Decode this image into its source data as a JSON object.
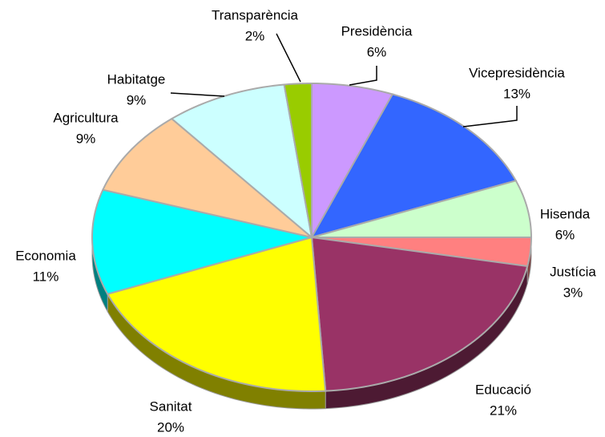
{
  "chart_data": {
    "type": "pie",
    "categories": [
      "Presidència",
      "Vicepresidència",
      "Hisenda",
      "Justícia",
      "Educació",
      "Sanitat",
      "Economia",
      "Agricultura",
      "Habitatge",
      "Transparència"
    ],
    "values": [
      6,
      13,
      6,
      3,
      21,
      20,
      11,
      9,
      9,
      2
    ],
    "value_labels": [
      "6%",
      "13%",
      "6%",
      "3%",
      "21%",
      "20%",
      "11%",
      "9%",
      "9%",
      "2%"
    ],
    "colors": [
      "#cc99ff",
      "#3366ff",
      "#ccffcc",
      "#ff8080",
      "#993366",
      "#ffff00",
      "#00ffff",
      "#ffcc99",
      "#ccffff",
      "#99cc00"
    ]
  }
}
